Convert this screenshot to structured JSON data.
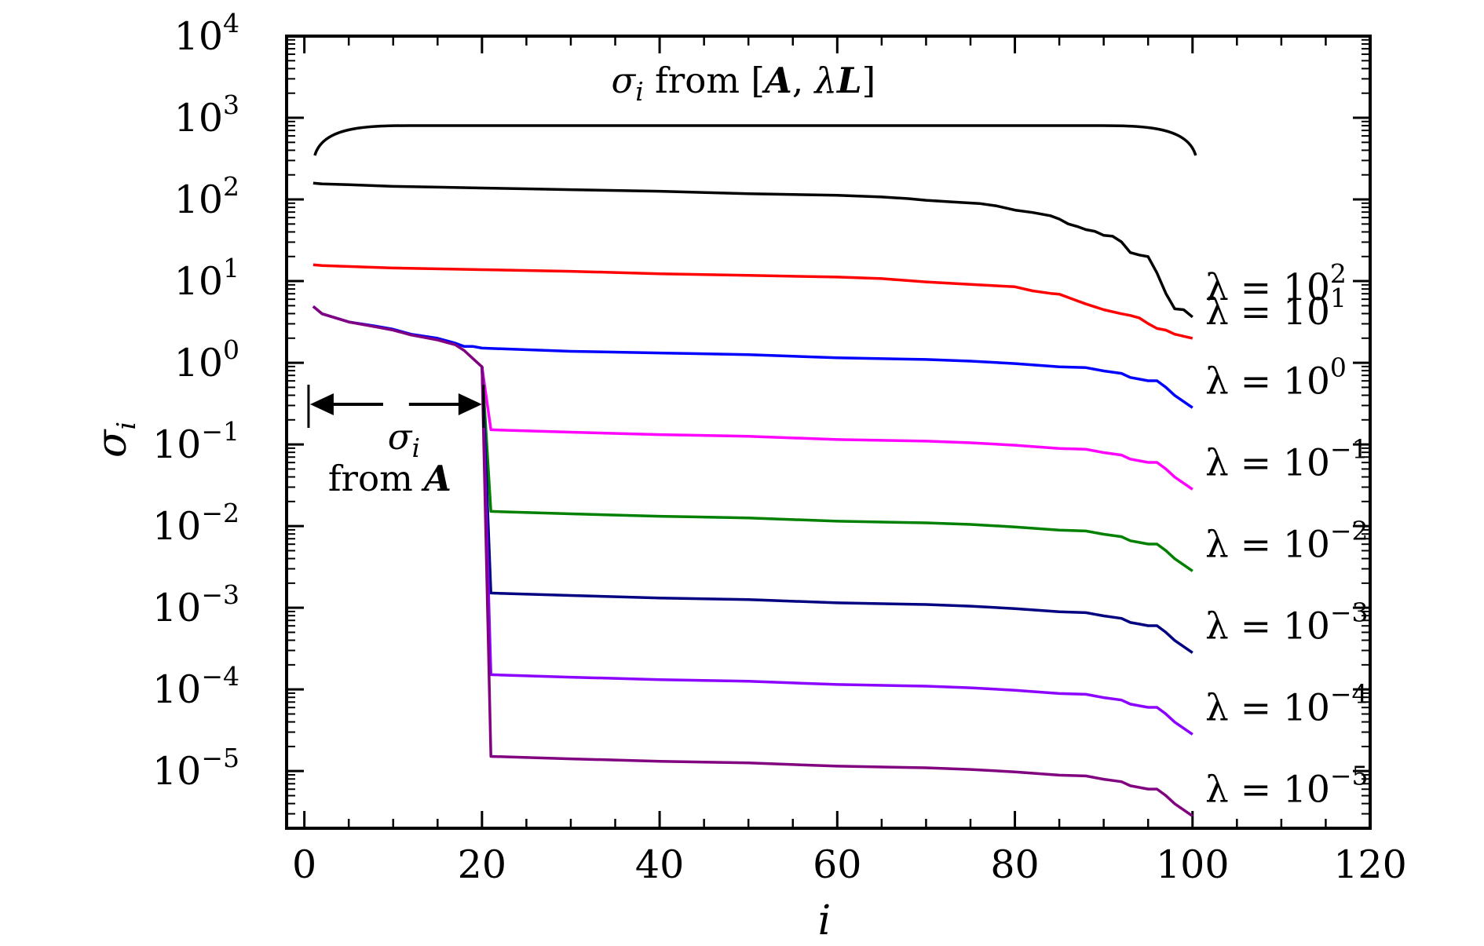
{
  "chart_data": {
    "type": "line",
    "yscale": "log",
    "xlabel": "i",
    "ylabel": "σ",
    "ylabel_subscript": "i",
    "xlim": [
      -2,
      120
    ],
    "ylim_exp": [
      -5.7,
      4
    ],
    "xticks": [
      0,
      20,
      40,
      60,
      80,
      100,
      120
    ],
    "xtick_labels": [
      "0",
      "20",
      "40",
      "60",
      "80",
      "100",
      "120"
    ],
    "yticks_exp": [
      -5,
      -4,
      -3,
      -2,
      -1,
      0,
      1,
      2,
      3,
      4
    ],
    "ytick_base": "10",
    "ytick_exponents": [
      "−5",
      "−4",
      "−3",
      "−2",
      "−1",
      "0",
      "1",
      "2",
      "3",
      "4"
    ],
    "first_block_end": 20,
    "series": [
      {
        "name": "λ = 10^2",
        "label_prefix": "λ = 10",
        "label_exponent": "2",
        "color": "#000000",
        "x": [
          1,
          2,
          5,
          10,
          15,
          20,
          25,
          30,
          40,
          50,
          60,
          65,
          68,
          70,
          73,
          76,
          78,
          80,
          82,
          84,
          85,
          86,
          87,
          88,
          89,
          90,
          91,
          92,
          93,
          94,
          95,
          96,
          97,
          98,
          99,
          100
        ],
        "log10_values": [
          2.2,
          2.19,
          2.18,
          2.16,
          2.15,
          2.14,
          2.13,
          2.12,
          2.1,
          2.07,
          2.05,
          2.03,
          2.01,
          1.99,
          1.97,
          1.95,
          1.92,
          1.87,
          1.84,
          1.8,
          1.76,
          1.7,
          1.67,
          1.63,
          1.61,
          1.56,
          1.55,
          1.48,
          1.35,
          1.32,
          1.3,
          1.1,
          0.85,
          0.66,
          0.65,
          0.56
        ]
      },
      {
        "name": "λ = 10^1",
        "label_prefix": "λ = 10",
        "label_exponent": "1",
        "color": "#ff0000",
        "x": [
          1,
          2,
          10,
          20,
          30,
          40,
          50,
          60,
          65,
          70,
          75,
          80,
          82,
          84,
          85,
          86,
          88,
          90,
          92,
          93,
          94,
          95,
          96,
          97,
          98,
          100
        ],
        "log10_values": [
          1.2,
          1.19,
          1.16,
          1.14,
          1.12,
          1.09,
          1.07,
          1.05,
          1.03,
          0.99,
          0.96,
          0.93,
          0.88,
          0.85,
          0.84,
          0.8,
          0.72,
          0.65,
          0.6,
          0.58,
          0.55,
          0.48,
          0.42,
          0.4,
          0.35,
          0.3
        ]
      },
      {
        "name": "λ = 10^0",
        "label_prefix": "λ = 10",
        "label_exponent": "0",
        "color": "#0000ff",
        "x": [
          1,
          2,
          5,
          8,
          10,
          12,
          15,
          17,
          18,
          19,
          20,
          30,
          40,
          50,
          60,
          70,
          75,
          80,
          85,
          88,
          90,
          92,
          93,
          94,
          95,
          96,
          97,
          98,
          100
        ],
        "log10_values": [
          0.69,
          0.6,
          0.5,
          0.45,
          0.41,
          0.35,
          0.3,
          0.24,
          0.2,
          0.2,
          0.18,
          0.14,
          0.12,
          0.1,
          0.06,
          0.04,
          0.02,
          -0.01,
          -0.05,
          -0.06,
          -0.1,
          -0.13,
          -0.18,
          -0.2,
          -0.22,
          -0.22,
          -0.3,
          -0.4,
          -0.55
        ]
      },
      {
        "name": "λ = 10^-1",
        "label_prefix": "λ = 10",
        "label_exponent": "−1",
        "color": "#ff00ff",
        "x": [
          20,
          21,
          30,
          40,
          50,
          60,
          70,
          75,
          80,
          85,
          88,
          90,
          92,
          93,
          94,
          95,
          96,
          97,
          98,
          100
        ],
        "log10_values": [
          -0.05,
          -0.82,
          -0.85,
          -0.88,
          -0.9,
          -0.94,
          -0.96,
          -0.98,
          -1.01,
          -1.05,
          -1.06,
          -1.1,
          -1.13,
          -1.18,
          -1.2,
          -1.22,
          -1.22,
          -1.3,
          -1.4,
          -1.55
        ]
      },
      {
        "name": "λ = 10^-2",
        "label_prefix": "λ = 10",
        "label_exponent": "−2",
        "color": "#008000",
        "x": [
          20,
          21,
          30,
          40,
          50,
          60,
          70,
          75,
          80,
          85,
          88,
          90,
          92,
          93,
          94,
          95,
          96,
          97,
          98,
          100
        ],
        "log10_values": [
          -0.05,
          -1.82,
          -1.85,
          -1.88,
          -1.9,
          -1.94,
          -1.96,
          -1.98,
          -2.01,
          -2.05,
          -2.06,
          -2.1,
          -2.13,
          -2.18,
          -2.2,
          -2.22,
          -2.22,
          -2.3,
          -2.4,
          -2.55
        ]
      },
      {
        "name": "λ = 10^-3",
        "label_prefix": "λ = 10",
        "label_exponent": "−3",
        "color": "#000080",
        "x": [
          20,
          21,
          30,
          40,
          50,
          60,
          70,
          75,
          80,
          85,
          88,
          90,
          92,
          93,
          94,
          95,
          96,
          97,
          98,
          100
        ],
        "log10_values": [
          -0.05,
          -2.82,
          -2.85,
          -2.88,
          -2.9,
          -2.94,
          -2.96,
          -2.98,
          -3.01,
          -3.05,
          -3.06,
          -3.1,
          -3.13,
          -3.18,
          -3.2,
          -3.22,
          -3.22,
          -3.3,
          -3.4,
          -3.55
        ]
      },
      {
        "name": "λ = 10^-4",
        "label_prefix": "λ = 10",
        "label_exponent": "−4",
        "color": "#8b00ff",
        "x": [
          20,
          21,
          30,
          40,
          50,
          60,
          70,
          75,
          80,
          85,
          88,
          90,
          92,
          93,
          94,
          95,
          96,
          97,
          98,
          100
        ],
        "log10_values": [
          -0.05,
          -3.82,
          -3.85,
          -3.88,
          -3.9,
          -3.94,
          -3.96,
          -3.98,
          -4.01,
          -4.05,
          -4.06,
          -4.1,
          -4.13,
          -4.18,
          -4.2,
          -4.22,
          -4.22,
          -4.3,
          -4.4,
          -4.55
        ]
      },
      {
        "name": "λ = 10^-5",
        "label_prefix": "λ = 10",
        "label_exponent": "−5",
        "color": "#800080",
        "x": [
          1,
          2,
          5,
          8,
          10,
          12,
          15,
          17,
          18,
          19,
          20,
          21,
          30,
          40,
          50,
          60,
          70,
          75,
          80,
          85,
          88,
          90,
          92,
          93,
          94,
          95,
          96,
          97,
          98,
          100
        ],
        "log10_values": [
          0.69,
          0.6,
          0.5,
          0.44,
          0.4,
          0.34,
          0.28,
          0.22,
          0.15,
          0.05,
          -0.05,
          -4.82,
          -4.85,
          -4.88,
          -4.9,
          -4.94,
          -4.96,
          -4.98,
          -5.01,
          -5.05,
          -5.06,
          -5.1,
          -5.13,
          -5.18,
          -5.2,
          -5.22,
          -5.22,
          -5.3,
          -5.4,
          -5.55
        ]
      }
    ],
    "annotations": {
      "top_brace": {
        "sigma": "σ",
        "sub": "i",
        "from_word": "from",
        "open_bracket": "[",
        "matrix_a": "A",
        "comma": ",",
        "lambda": "λ",
        "matrix_l": "L",
        "close_bracket": "]",
        "x_start": 1,
        "x_end": 100
      },
      "left_arrow": {
        "sigma": "σ",
        "sub": "i",
        "text": "from",
        "matrix": "A",
        "x_start": 1,
        "x_end": 20
      }
    }
  }
}
